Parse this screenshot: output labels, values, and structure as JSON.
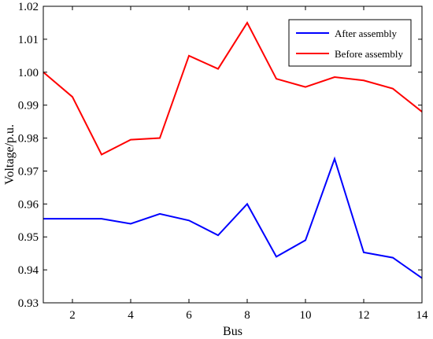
{
  "chart_data": {
    "type": "line",
    "xlabel": "Bus",
    "ylabel": "Voltage/p.u.",
    "x": [
      1,
      2,
      3,
      4,
      5,
      6,
      7,
      8,
      9,
      10,
      11,
      12,
      13,
      14
    ],
    "xlim": [
      1,
      14
    ],
    "ylim": [
      0.93,
      1.02
    ],
    "x_tick_values": [
      2,
      4,
      6,
      8,
      10,
      12,
      14
    ],
    "x_tick_labels": [
      "2",
      "4",
      "6",
      "8",
      "10",
      "12",
      "14"
    ],
    "y_tick_values": [
      0.93,
      0.94,
      0.95,
      0.96,
      0.97,
      0.98,
      0.99,
      1.0,
      1.01,
      1.02
    ],
    "y_tick_labels": [
      "0.93",
      "0.94",
      "0.95",
      "0.96",
      "0.97",
      "0.98",
      "0.99",
      "1.00",
      "1.01",
      "1.02"
    ],
    "grid": false,
    "legend_position": "top-right",
    "series": [
      {
        "name": "After assembly",
        "color": "#0000ff",
        "values": [
          0.9555,
          0.9555,
          0.9555,
          0.954,
          0.957,
          0.955,
          0.9505,
          0.96,
          0.944,
          0.949,
          0.9737,
          0.9453,
          0.9437,
          0.9375
        ]
      },
      {
        "name": "Before assembly",
        "color": "#ff0000",
        "values": [
          1.0,
          0.9925,
          0.975,
          0.9795,
          0.98,
          1.005,
          1.001,
          1.015,
          0.998,
          0.9955,
          0.9985,
          0.9975,
          0.995,
          0.988
        ]
      }
    ]
  }
}
